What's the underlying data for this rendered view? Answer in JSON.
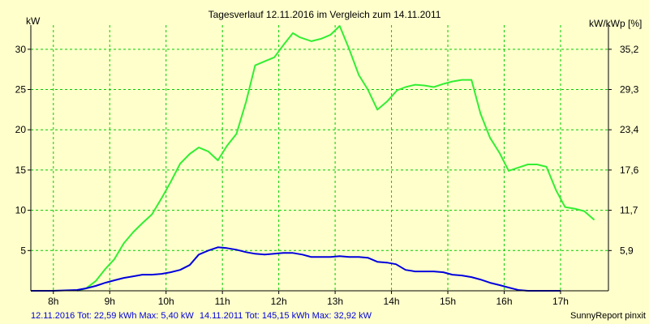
{
  "chart_data": {
    "type": "line",
    "title": "Tagesverlauf 12.11.2016 im Vergleich zum 14.11.2011",
    "ylabel_left": "kW",
    "ylabel_right": "kW/kWp [%]",
    "credit": "SunnyReport pinxit",
    "xlim": [
      7.6,
      17.85
    ],
    "ylim": [
      0,
      33
    ],
    "x_ticks": [
      8,
      9,
      10,
      11,
      12,
      13,
      14,
      15,
      16,
      17
    ],
    "x_tick_labels": [
      "8h",
      "9h",
      "10h",
      "11h",
      "12h",
      "13h",
      "14h",
      "15h",
      "16h",
      "17h"
    ],
    "y_ticks": [
      5,
      10,
      15,
      20,
      25,
      30
    ],
    "y_tick_labels": [
      "5",
      "10",
      "15",
      "20",
      "25",
      "30"
    ],
    "y2_tick_labels": [
      "5,9",
      "11,7",
      "17,6",
      "23,4",
      "29,3",
      "35,2"
    ],
    "grid": true,
    "legend_position": "bottom-left",
    "colors": {
      "background": "#ffffcc",
      "grid": "#00cc00",
      "axis": "#000000",
      "series_2016": "#0000dd",
      "series_2011": "#33ee33"
    },
    "legend": [
      {
        "name": "12.11.2016",
        "color": "#0000dd",
        "text": "12.11.2016 Tot: 22,59 kWh Max: 5,40 kW"
      },
      {
        "name": "14.11.2011",
        "color": "#33ee33",
        "text": "14.11.2011 Tot: 145,15 kWh Max: 32,92 kW"
      }
    ],
    "series": [
      {
        "name": "14.11.2011",
        "color": "#33ee33",
        "x": [
          8.42,
          8.58,
          8.75,
          8.92,
          9.08,
          9.25,
          9.42,
          9.58,
          9.75,
          9.92,
          10.08,
          10.25,
          10.42,
          10.58,
          10.75,
          10.92,
          11.08,
          11.25,
          11.42,
          11.58,
          11.75,
          11.92,
          12.08,
          12.25,
          12.37,
          12.58,
          12.75,
          12.92,
          13.08,
          13.25,
          13.42,
          13.58,
          13.75,
          13.92,
          14.1,
          14.25,
          14.42,
          14.58,
          14.75,
          14.92,
          15.08,
          15.25,
          15.42,
          15.58,
          15.75,
          15.92,
          16.08,
          16.25,
          16.42,
          16.58,
          16.75,
          16.92,
          17.08,
          17.25,
          17.42,
          17.6
        ],
        "values": [
          0.0,
          0.3,
          1.2,
          2.7,
          3.9,
          5.9,
          7.3,
          8.4,
          9.5,
          11.5,
          13.5,
          15.8,
          17.0,
          17.8,
          17.3,
          16.2,
          18.0,
          19.5,
          23.5,
          28.0,
          28.5,
          29.0,
          30.5,
          32.0,
          31.5,
          31.0,
          31.3,
          31.8,
          32.9,
          30.0,
          26.8,
          25.0,
          22.5,
          23.5,
          24.9,
          25.3,
          25.6,
          25.5,
          25.3,
          25.7,
          26.0,
          26.2,
          26.2,
          22.0,
          19.0,
          17.1,
          14.9,
          15.3,
          15.7,
          15.7,
          15.4,
          12.5,
          10.4,
          10.2,
          9.9,
          8.8
        ]
      },
      {
        "name": "12.11.2016",
        "color": "#0000dd",
        "x": [
          7.6,
          8.0,
          8.42,
          8.58,
          8.75,
          8.92,
          9.08,
          9.25,
          9.42,
          9.58,
          9.75,
          9.92,
          10.08,
          10.25,
          10.42,
          10.58,
          10.75,
          10.92,
          11.08,
          11.25,
          11.42,
          11.58,
          11.75,
          11.92,
          12.08,
          12.25,
          12.42,
          12.58,
          12.75,
          12.92,
          13.08,
          13.25,
          13.42,
          13.58,
          13.75,
          13.92,
          14.08,
          14.25,
          14.42,
          14.58,
          14.75,
          14.92,
          15.08,
          15.25,
          15.42,
          15.58,
          15.75,
          15.92,
          16.08,
          16.25,
          16.42,
          16.58,
          16.75,
          16.92,
          17.0
        ],
        "values": [
          0.0,
          0.0,
          0.1,
          0.3,
          0.6,
          1.0,
          1.3,
          1.6,
          1.8,
          2.0,
          2.0,
          2.1,
          2.3,
          2.6,
          3.2,
          4.5,
          5.0,
          5.4,
          5.3,
          5.1,
          4.8,
          4.6,
          4.5,
          4.6,
          4.7,
          4.7,
          4.5,
          4.2,
          4.2,
          4.2,
          4.3,
          4.2,
          4.2,
          4.1,
          3.6,
          3.5,
          3.3,
          2.6,
          2.4,
          2.4,
          2.4,
          2.3,
          2.0,
          1.9,
          1.7,
          1.4,
          1.0,
          0.7,
          0.4,
          0.1,
          0.0,
          0.0,
          0.0,
          0.0,
          0.0
        ]
      }
    ]
  }
}
